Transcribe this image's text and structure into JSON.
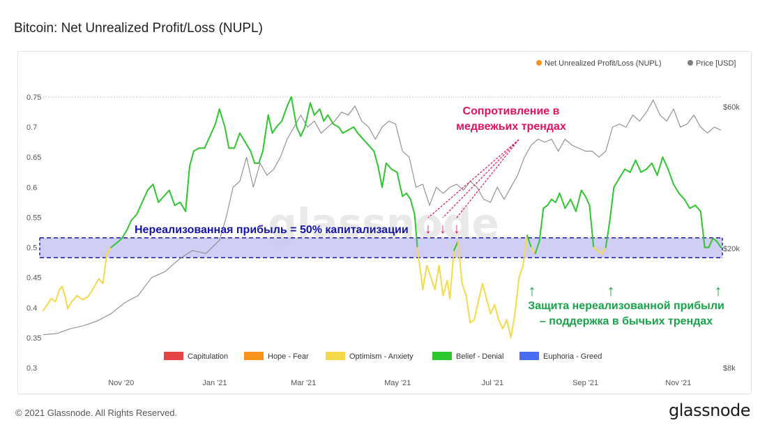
{
  "title": "Bitcoin: Net Unrealized Profit/Loss (NUPL)",
  "footer": {
    "copyright": "© 2021 Glassnode. All Rights Reserved.",
    "logo": "glassnode"
  },
  "watermark": "glassnode",
  "colors": {
    "capitulation": "#e64545",
    "hope_fear": "#f7931a",
    "optimism_anxiety": "#f4d94a",
    "belief_denial": "#2ec52e",
    "euphoria_greed": "#4a6cf0",
    "price": "#8a8a8a",
    "band_fill": "#c9c6f5",
    "band_border": "#1a1aa8",
    "annotation_red": "#e0125f",
    "annotation_green": "#17a34a",
    "annotation_blue": "#1414a8"
  },
  "annotations": {
    "band_label": "Нереализованная прибыль = 50% капитализации",
    "resistance_line1": "Сопротивление в",
    "resistance_line2": "медвежьих трендах",
    "support_line1": "Защита нереализованной прибыли",
    "support_line2": "– поддержка в бычьих трендах",
    "arrow_glyph_down": "↓",
    "arrow_glyph_up": "↑"
  },
  "chart_data": {
    "type": "line",
    "title": "Bitcoin: Net Unrealized Profit/Loss (NUPL)",
    "legend_placement": "top-right",
    "legend": [
      {
        "name": "Net Unrealized Profit/Loss (NUPL)",
        "color": "#f7931a"
      },
      {
        "name": "Price [USD]",
        "color": "#7f7f7f"
      }
    ],
    "zone_legend_placement": "bottom",
    "zone_legend": [
      {
        "name": "Capitulation",
        "color": "#e64545"
      },
      {
        "name": "Hope - Fear",
        "color": "#f7931a"
      },
      {
        "name": "Optimism - Anxiety",
        "color": "#f4d94a"
      },
      {
        "name": "Belief - Denial",
        "color": "#2ec52e"
      },
      {
        "name": "Euphoria - Greed",
        "color": "#4a6cf0"
      }
    ],
    "x_ticks": [
      {
        "label": "Nov '20",
        "t": 0.115
      },
      {
        "label": "Jan '21",
        "t": 0.253
      },
      {
        "label": "Mar '21",
        "t": 0.384
      },
      {
        "label": "May '21",
        "t": 0.523
      },
      {
        "label": "Jul '21",
        "t": 0.663
      },
      {
        "label": "Sep '21",
        "t": 0.8
      },
      {
        "label": "Nov '21",
        "t": 0.937
      }
    ],
    "y_left": {
      "ticks": [
        0.3,
        0.35,
        0.4,
        0.45,
        0.5,
        0.55,
        0.6,
        0.65,
        0.7,
        0.75
      ],
      "ylim": [
        0.3,
        0.75
      ]
    },
    "y_right": {
      "ticks": [
        "$60k",
        "$20k",
        "$8k"
      ],
      "scale": "log"
    },
    "band": {
      "label": "Нереализованная прибыль = 50% капитализации",
      "y_range": [
        0.483,
        0.516
      ]
    },
    "nupl_series": [
      [
        0.0,
        0.395
      ],
      [
        0.006,
        0.405
      ],
      [
        0.012,
        0.415
      ],
      [
        0.018,
        0.41
      ],
      [
        0.024,
        0.43
      ],
      [
        0.028,
        0.435
      ],
      [
        0.032,
        0.42
      ],
      [
        0.036,
        0.398
      ],
      [
        0.042,
        0.41
      ],
      [
        0.05,
        0.42
      ],
      [
        0.058,
        0.413
      ],
      [
        0.066,
        0.418
      ],
      [
        0.074,
        0.432
      ],
      [
        0.082,
        0.448
      ],
      [
        0.088,
        0.44
      ],
      [
        0.094,
        0.49
      ],
      [
        0.1,
        0.5
      ],
      [
        0.108,
        0.507
      ],
      [
        0.116,
        0.515
      ],
      [
        0.124,
        0.53
      ],
      [
        0.13,
        0.545
      ],
      [
        0.138,
        0.555
      ],
      [
        0.146,
        0.575
      ],
      [
        0.154,
        0.595
      ],
      [
        0.162,
        0.605
      ],
      [
        0.17,
        0.575
      ],
      [
        0.178,
        0.585
      ],
      [
        0.186,
        0.595
      ],
      [
        0.194,
        0.57
      ],
      [
        0.202,
        0.575
      ],
      [
        0.21,
        0.56
      ],
      [
        0.216,
        0.635
      ],
      [
        0.222,
        0.66
      ],
      [
        0.23,
        0.665
      ],
      [
        0.238,
        0.665
      ],
      [
        0.246,
        0.685
      ],
      [
        0.254,
        0.705
      ],
      [
        0.26,
        0.73
      ],
      [
        0.268,
        0.7
      ],
      [
        0.274,
        0.665
      ],
      [
        0.282,
        0.665
      ],
      [
        0.29,
        0.69
      ],
      [
        0.298,
        0.675
      ],
      [
        0.306,
        0.66
      ],
      [
        0.312,
        0.64
      ],
      [
        0.318,
        0.64
      ],
      [
        0.324,
        0.66
      ],
      [
        0.332,
        0.72
      ],
      [
        0.338,
        0.69
      ],
      [
        0.344,
        0.7
      ],
      [
        0.352,
        0.71
      ],
      [
        0.36,
        0.735
      ],
      [
        0.366,
        0.75
      ],
      [
        0.374,
        0.7
      ],
      [
        0.38,
        0.685
      ],
      [
        0.386,
        0.7
      ],
      [
        0.394,
        0.74
      ],
      [
        0.4,
        0.72
      ],
      [
        0.408,
        0.73
      ],
      [
        0.414,
        0.71
      ],
      [
        0.42,
        0.72
      ],
      [
        0.428,
        0.705
      ],
      [
        0.436,
        0.7
      ],
      [
        0.442,
        0.69
      ],
      [
        0.45,
        0.695
      ],
      [
        0.458,
        0.7
      ],
      [
        0.464,
        0.69
      ],
      [
        0.472,
        0.68
      ],
      [
        0.48,
        0.67
      ],
      [
        0.488,
        0.66
      ],
      [
        0.494,
        0.635
      ],
      [
        0.5,
        0.6
      ],
      [
        0.506,
        0.64
      ],
      [
        0.514,
        0.63
      ],
      [
        0.522,
        0.625
      ],
      [
        0.53,
        0.585
      ],
      [
        0.536,
        0.59
      ],
      [
        0.542,
        0.58
      ],
      [
        0.548,
        0.555
      ],
      [
        0.552,
        0.5
      ],
      [
        0.556,
        0.465
      ],
      [
        0.56,
        0.43
      ],
      [
        0.566,
        0.47
      ],
      [
        0.572,
        0.45
      ],
      [
        0.578,
        0.43
      ],
      [
        0.584,
        0.47
      ],
      [
        0.59,
        0.42
      ],
      [
        0.596,
        0.445
      ],
      [
        0.6,
        0.415
      ],
      [
        0.606,
        0.495
      ],
      [
        0.612,
        0.51
      ],
      [
        0.618,
        0.44
      ],
      [
        0.624,
        0.42
      ],
      [
        0.63,
        0.375
      ],
      [
        0.636,
        0.38
      ],
      [
        0.642,
        0.41
      ],
      [
        0.648,
        0.44
      ],
      [
        0.654,
        0.415
      ],
      [
        0.66,
        0.39
      ],
      [
        0.666,
        0.405
      ],
      [
        0.672,
        0.38
      ],
      [
        0.678,
        0.365
      ],
      [
        0.684,
        0.38
      ],
      [
        0.69,
        0.35
      ],
      [
        0.696,
        0.39
      ],
      [
        0.702,
        0.45
      ],
      [
        0.708,
        0.47
      ],
      [
        0.714,
        0.52
      ],
      [
        0.72,
        0.5
      ],
      [
        0.726,
        0.49
      ],
      [
        0.732,
        0.51
      ],
      [
        0.738,
        0.565
      ],
      [
        0.744,
        0.57
      ],
      [
        0.75,
        0.58
      ],
      [
        0.756,
        0.575
      ],
      [
        0.762,
        0.59
      ],
      [
        0.77,
        0.565
      ],
      [
        0.778,
        0.58
      ],
      [
        0.786,
        0.56
      ],
      [
        0.794,
        0.595
      ],
      [
        0.8,
        0.585
      ],
      [
        0.806,
        0.57
      ],
      [
        0.812,
        0.5
      ],
      [
        0.818,
        0.495
      ],
      [
        0.824,
        0.49
      ],
      [
        0.83,
        0.5
      ],
      [
        0.836,
        0.545
      ],
      [
        0.842,
        0.6
      ],
      [
        0.85,
        0.615
      ],
      [
        0.858,
        0.63
      ],
      [
        0.866,
        0.625
      ],
      [
        0.874,
        0.645
      ],
      [
        0.882,
        0.625
      ],
      [
        0.89,
        0.63
      ],
      [
        0.898,
        0.64
      ],
      [
        0.906,
        0.62
      ],
      [
        0.914,
        0.65
      ],
      [
        0.922,
        0.63
      ],
      [
        0.93,
        0.605
      ],
      [
        0.938,
        0.59
      ],
      [
        0.946,
        0.58
      ],
      [
        0.954,
        0.565
      ],
      [
        0.962,
        0.57
      ],
      [
        0.97,
        0.56
      ],
      [
        0.976,
        0.5
      ],
      [
        0.982,
        0.5
      ],
      [
        0.988,
        0.515
      ],
      [
        0.994,
        0.51
      ],
      [
        1.0,
        0.5
      ]
    ],
    "price_series": [
      [
        0.0,
        0.355
      ],
      [
        0.02,
        0.357
      ],
      [
        0.04,
        0.365
      ],
      [
        0.06,
        0.37
      ],
      [
        0.08,
        0.378
      ],
      [
        0.1,
        0.39
      ],
      [
        0.12,
        0.408
      ],
      [
        0.14,
        0.42
      ],
      [
        0.16,
        0.45
      ],
      [
        0.18,
        0.46
      ],
      [
        0.2,
        0.48
      ],
      [
        0.22,
        0.495
      ],
      [
        0.24,
        0.49
      ],
      [
        0.26,
        0.512
      ],
      [
        0.27,
        0.55
      ],
      [
        0.28,
        0.6
      ],
      [
        0.29,
        0.61
      ],
      [
        0.3,
        0.65
      ],
      [
        0.31,
        0.6
      ],
      [
        0.32,
        0.64
      ],
      [
        0.33,
        0.62
      ],
      [
        0.34,
        0.63
      ],
      [
        0.35,
        0.65
      ],
      [
        0.36,
        0.68
      ],
      [
        0.37,
        0.7
      ],
      [
        0.38,
        0.72
      ],
      [
        0.39,
        0.7
      ],
      [
        0.4,
        0.71
      ],
      [
        0.41,
        0.69
      ],
      [
        0.42,
        0.7
      ],
      [
        0.43,
        0.71
      ],
      [
        0.44,
        0.725
      ],
      [
        0.45,
        0.72
      ],
      [
        0.46,
        0.735
      ],
      [
        0.47,
        0.71
      ],
      [
        0.48,
        0.7
      ],
      [
        0.49,
        0.68
      ],
      [
        0.5,
        0.7
      ],
      [
        0.51,
        0.71
      ],
      [
        0.52,
        0.705
      ],
      [
        0.53,
        0.66
      ],
      [
        0.54,
        0.65
      ],
      [
        0.55,
        0.6
      ],
      [
        0.56,
        0.605
      ],
      [
        0.57,
        0.57
      ],
      [
        0.58,
        0.6
      ],
      [
        0.59,
        0.59
      ],
      [
        0.6,
        0.6
      ],
      [
        0.61,
        0.605
      ],
      [
        0.62,
        0.595
      ],
      [
        0.63,
        0.61
      ],
      [
        0.64,
        0.6
      ],
      [
        0.65,
        0.58
      ],
      [
        0.66,
        0.575
      ],
      [
        0.67,
        0.6
      ],
      [
        0.68,
        0.58
      ],
      [
        0.69,
        0.6
      ],
      [
        0.7,
        0.62
      ],
      [
        0.71,
        0.65
      ],
      [
        0.72,
        0.67
      ],
      [
        0.73,
        0.68
      ],
      [
        0.74,
        0.675
      ],
      [
        0.75,
        0.68
      ],
      [
        0.76,
        0.66
      ],
      [
        0.77,
        0.68
      ],
      [
        0.78,
        0.67
      ],
      [
        0.79,
        0.665
      ],
      [
        0.8,
        0.66
      ],
      [
        0.81,
        0.66
      ],
      [
        0.82,
        0.65
      ],
      [
        0.83,
        0.66
      ],
      [
        0.84,
        0.7
      ],
      [
        0.85,
        0.705
      ],
      [
        0.86,
        0.7
      ],
      [
        0.87,
        0.72
      ],
      [
        0.88,
        0.71
      ],
      [
        0.89,
        0.725
      ],
      [
        0.9,
        0.745
      ],
      [
        0.91,
        0.72
      ],
      [
        0.92,
        0.71
      ],
      [
        0.93,
        0.73
      ],
      [
        0.94,
        0.7
      ],
      [
        0.95,
        0.705
      ],
      [
        0.96,
        0.72
      ],
      [
        0.97,
        0.7
      ],
      [
        0.98,
        0.69
      ],
      [
        0.99,
        0.7
      ],
      [
        1.0,
        0.695
      ]
    ]
  }
}
